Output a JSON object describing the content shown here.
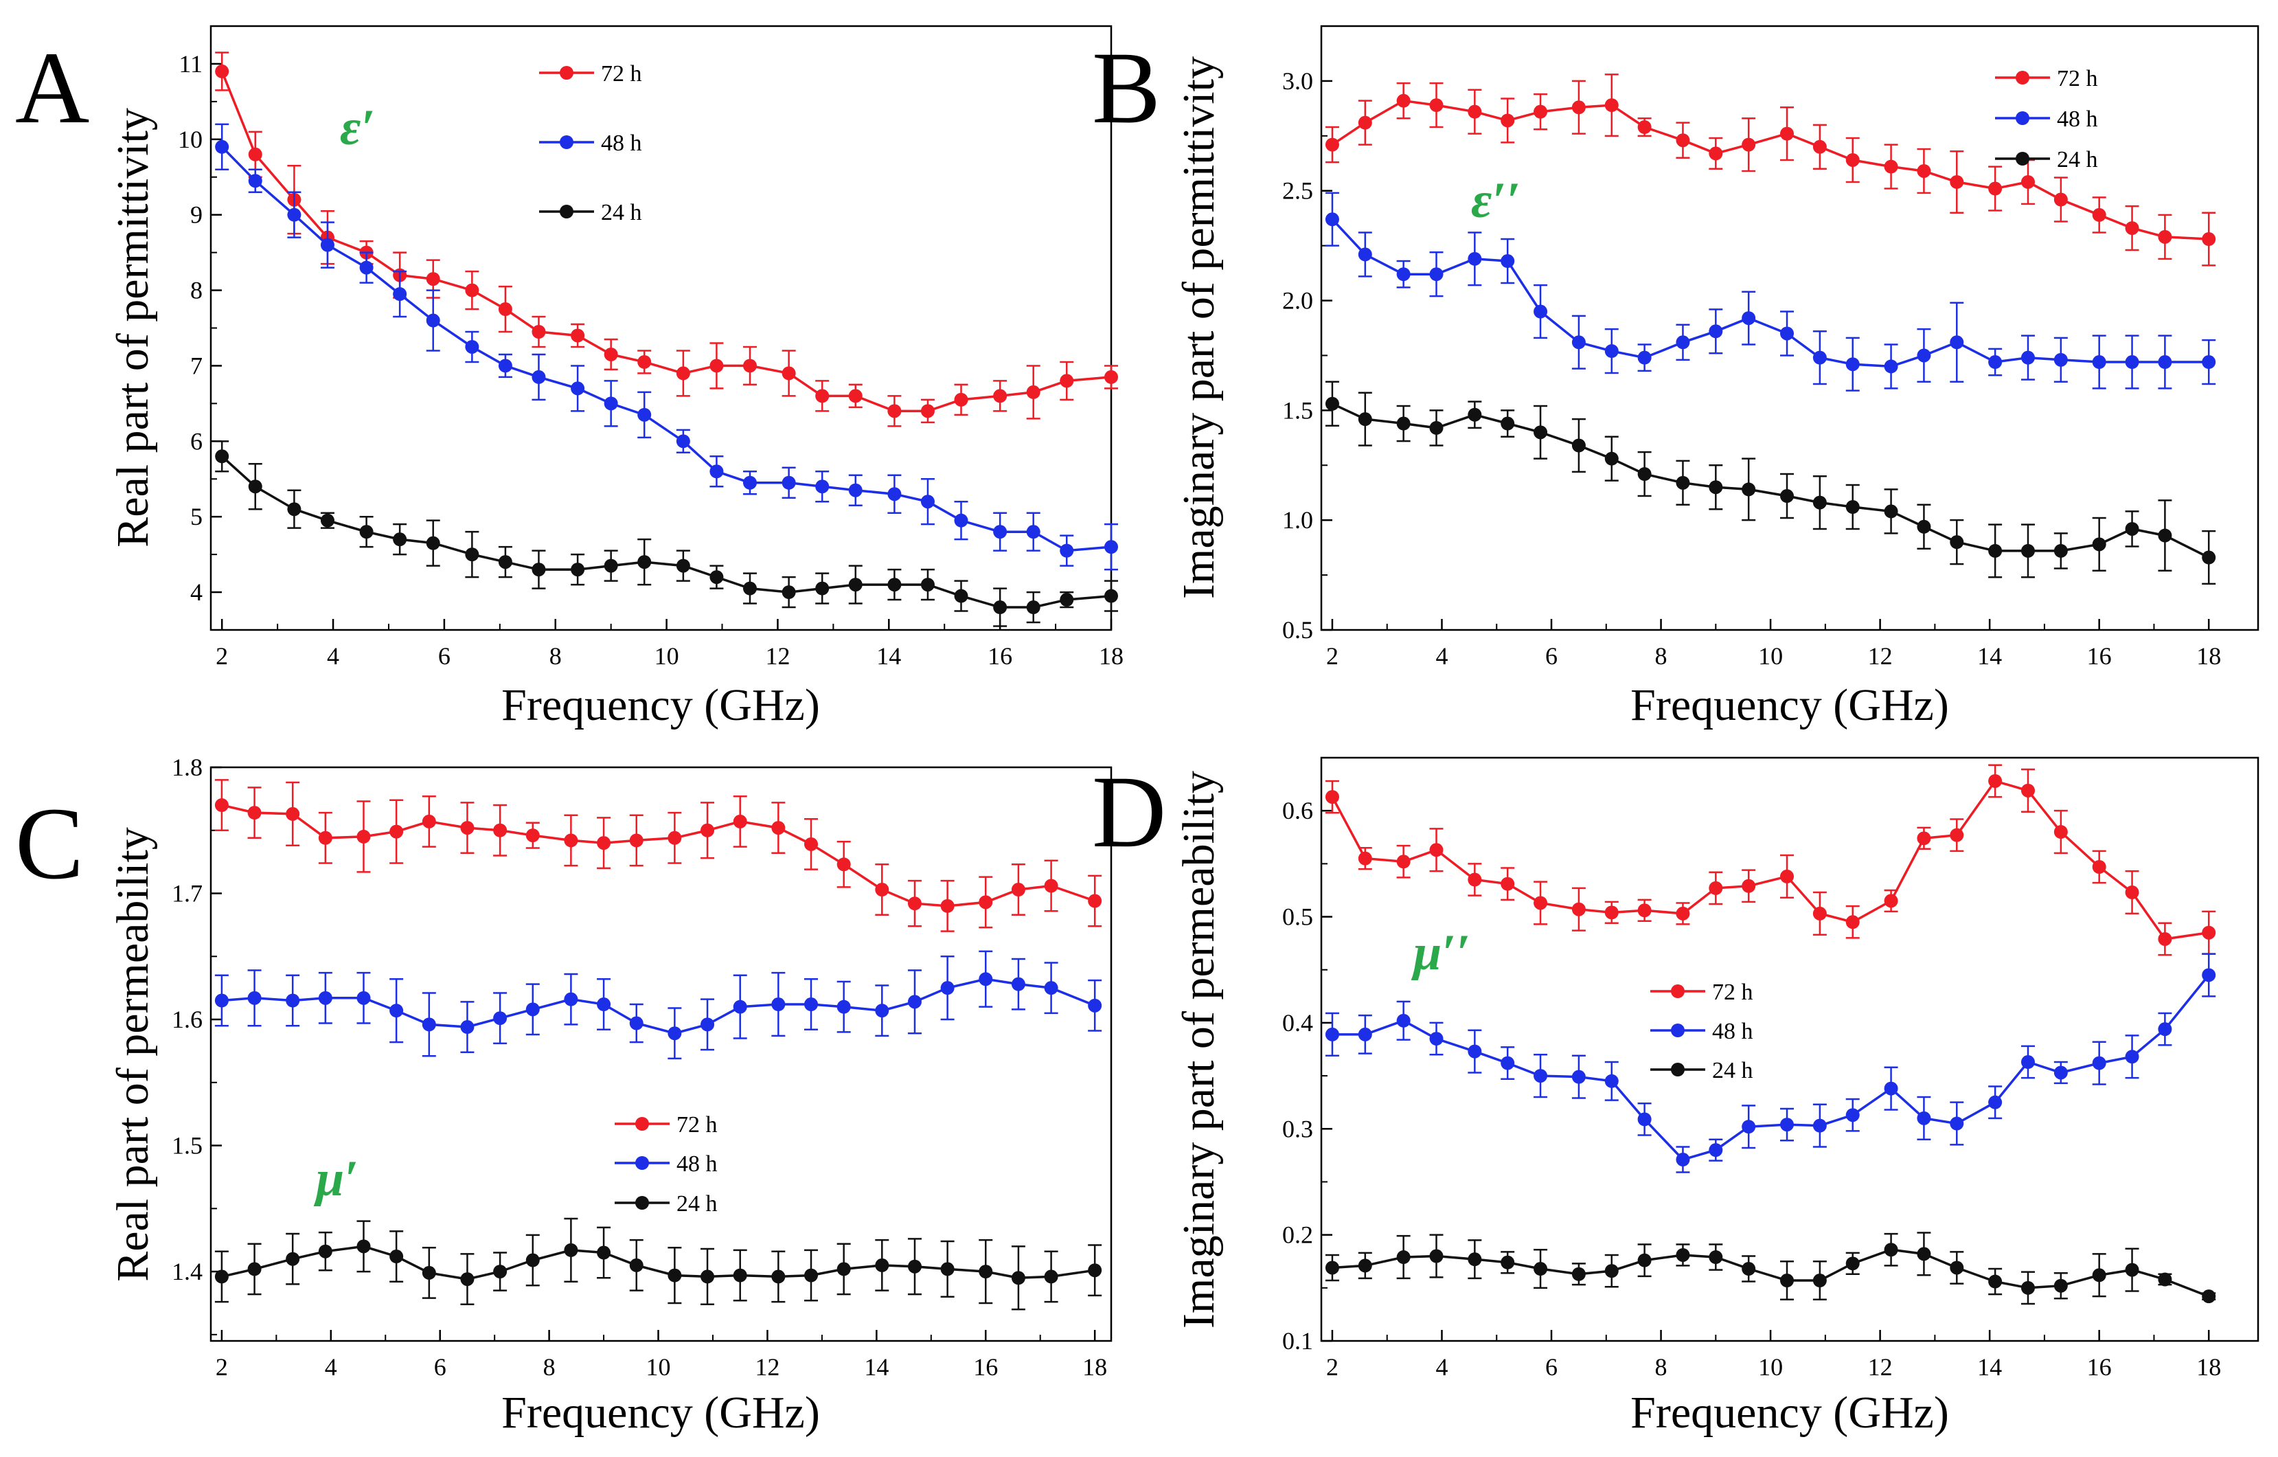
{
  "figure": {
    "panels": [
      "A",
      "B",
      "C",
      "D"
    ]
  },
  "chart_data": [
    {
      "panel": "A",
      "type": "line",
      "title": "",
      "xlabel": "Frequency (GHz)",
      "ylabel": "Real part of permittivity",
      "annotation": "ε′",
      "xlim": [
        1.8,
        18
      ],
      "ylim": [
        3.5,
        11.5
      ],
      "xticks": [
        2,
        4,
        6,
        8,
        10,
        12,
        14,
        16,
        18
      ],
      "yticks": [
        4,
        5,
        6,
        7,
        8,
        9,
        10,
        11
      ],
      "x": [
        2,
        2.6,
        3.3,
        3.9,
        4.6,
        5.2,
        5.8,
        6.5,
        7.1,
        7.7,
        8.4,
        9.0,
        9.6,
        10.3,
        10.9,
        11.5,
        12.2,
        12.8,
        13.4,
        14.1,
        14.7,
        15.3,
        16.0,
        16.6,
        17.2,
        18.0
      ],
      "legend": {
        "position": "top-center"
      },
      "series": [
        {
          "name": "72 h",
          "color": "#ee1c24",
          "values": [
            10.9,
            9.8,
            9.2,
            8.7,
            8.5,
            8.2,
            8.15,
            8.0,
            7.75,
            7.45,
            7.4,
            7.15,
            7.05,
            6.9,
            7.0,
            7.0,
            6.9,
            6.6,
            6.6,
            6.4,
            6.4,
            6.55,
            6.6,
            6.65,
            6.8,
            6.85
          ],
          "errors": [
            0.25,
            0.3,
            0.45,
            0.35,
            0.15,
            0.3,
            0.25,
            0.25,
            0.3,
            0.2,
            0.15,
            0.2,
            0.15,
            0.3,
            0.3,
            0.25,
            0.3,
            0.2,
            0.15,
            0.2,
            0.15,
            0.2,
            0.2,
            0.35,
            0.25,
            0.15
          ]
        },
        {
          "name": "48 h",
          "color": "#1c2fe6",
          "values": [
            9.9,
            9.45,
            9.0,
            8.6,
            8.3,
            7.95,
            7.6,
            7.25,
            7.0,
            6.85,
            6.7,
            6.5,
            6.35,
            6.0,
            5.6,
            5.45,
            5.45,
            5.4,
            5.35,
            5.3,
            5.2,
            4.95,
            4.8,
            4.8,
            4.55,
            4.6
          ],
          "errors": [
            0.3,
            0.15,
            0.3,
            0.3,
            0.2,
            0.3,
            0.4,
            0.2,
            0.15,
            0.3,
            0.3,
            0.3,
            0.3,
            0.15,
            0.2,
            0.15,
            0.2,
            0.2,
            0.2,
            0.25,
            0.3,
            0.25,
            0.25,
            0.25,
            0.2,
            0.3
          ]
        },
        {
          "name": "24 h",
          "color": "#111111",
          "values": [
            5.8,
            5.4,
            5.1,
            4.95,
            4.8,
            4.7,
            4.65,
            4.5,
            4.4,
            4.3,
            4.3,
            4.35,
            4.4,
            4.35,
            4.2,
            4.05,
            4.0,
            4.05,
            4.1,
            4.1,
            4.1,
            3.95,
            3.8,
            3.8,
            3.9,
            3.95
          ],
          "errors": [
            0.2,
            0.3,
            0.25,
            0.1,
            0.2,
            0.2,
            0.3,
            0.3,
            0.2,
            0.25,
            0.2,
            0.2,
            0.3,
            0.2,
            0.15,
            0.2,
            0.2,
            0.2,
            0.25,
            0.2,
            0.2,
            0.2,
            0.25,
            0.2,
            0.1,
            0.2
          ]
        }
      ]
    },
    {
      "panel": "B",
      "type": "line",
      "title": "",
      "xlabel": "Frequency (GHz)",
      "ylabel": "Imaginary part of permittivity",
      "annotation": "ε′′",
      "xlim": [
        1.8,
        18.9
      ],
      "ylim": [
        0.5,
        3.25
      ],
      "xticks": [
        2,
        4,
        6,
        8,
        10,
        12,
        14,
        16,
        18
      ],
      "yticks": [
        0.5,
        1.0,
        1.5,
        2.0,
        2.5,
        3.0
      ],
      "x": [
        2,
        2.6,
        3.3,
        3.9,
        4.6,
        5.2,
        5.8,
        6.5,
        7.1,
        7.7,
        8.4,
        9.0,
        9.6,
        10.3,
        10.9,
        11.5,
        12.2,
        12.8,
        13.4,
        14.1,
        14.7,
        15.3,
        16.0,
        16.6,
        17.2,
        18.0
      ],
      "legend": {
        "position": "top-right"
      },
      "series": [
        {
          "name": "72 h",
          "color": "#ee1c24",
          "values": [
            2.71,
            2.81,
            2.91,
            2.89,
            2.86,
            2.82,
            2.86,
            2.88,
            2.89,
            2.79,
            2.73,
            2.67,
            2.71,
            2.76,
            2.7,
            2.64,
            2.61,
            2.59,
            2.54,
            2.51,
            2.54,
            2.46,
            2.39,
            2.33,
            2.29,
            2.28
          ],
          "errors": [
            0.08,
            0.1,
            0.08,
            0.1,
            0.1,
            0.1,
            0.08,
            0.12,
            0.14,
            0.04,
            0.08,
            0.07,
            0.12,
            0.12,
            0.1,
            0.1,
            0.1,
            0.1,
            0.14,
            0.1,
            0.1,
            0.1,
            0.08,
            0.1,
            0.1,
            0.12
          ]
        },
        {
          "name": "48 h",
          "color": "#1c2fe6",
          "values": [
            2.37,
            2.21,
            2.12,
            2.12,
            2.19,
            2.18,
            1.95,
            1.81,
            1.77,
            1.74,
            1.81,
            1.86,
            1.92,
            1.85,
            1.74,
            1.71,
            1.7,
            1.75,
            1.81,
            1.72,
            1.74,
            1.73,
            1.72,
            1.72,
            1.72,
            1.72
          ],
          "errors": [
            0.12,
            0.1,
            0.06,
            0.1,
            0.12,
            0.1,
            0.12,
            0.12,
            0.1,
            0.06,
            0.08,
            0.1,
            0.12,
            0.1,
            0.12,
            0.12,
            0.1,
            0.12,
            0.18,
            0.06,
            0.1,
            0.1,
            0.12,
            0.12,
            0.12,
            0.1
          ]
        },
        {
          "name": "24 h",
          "color": "#111111",
          "values": [
            1.53,
            1.46,
            1.44,
            1.42,
            1.48,
            1.44,
            1.4,
            1.34,
            1.28,
            1.21,
            1.17,
            1.15,
            1.14,
            1.11,
            1.08,
            1.06,
            1.04,
            0.97,
            0.9,
            0.86,
            0.86,
            0.86,
            0.89,
            0.96,
            0.93,
            0.83
          ],
          "errors": [
            0.1,
            0.12,
            0.08,
            0.08,
            0.06,
            0.06,
            0.12,
            0.12,
            0.1,
            0.1,
            0.1,
            0.1,
            0.14,
            0.1,
            0.12,
            0.1,
            0.1,
            0.1,
            0.1,
            0.12,
            0.12,
            0.08,
            0.12,
            0.08,
            0.16,
            0.12
          ]
        }
      ]
    },
    {
      "panel": "C",
      "type": "line",
      "title": "",
      "xlabel": "Frequency (GHz)",
      "ylabel": "Real part of permeability",
      "annotation": "μ′",
      "xlim": [
        1.8,
        18.3
      ],
      "ylim": [
        1.345,
        1.8
      ],
      "xticks": [
        2,
        4,
        6,
        8,
        10,
        12,
        14,
        16,
        18
      ],
      "yticks": [
        1.4,
        1.5,
        1.6,
        1.7,
        1.8
      ],
      "x": [
        2,
        2.6,
        3.3,
        3.9,
        4.6,
        5.2,
        5.8,
        6.5,
        7.1,
        7.7,
        8.4,
        9.0,
        9.6,
        10.3,
        10.9,
        11.5,
        12.2,
        12.8,
        13.4,
        14.1,
        14.7,
        15.3,
        16.0,
        16.6,
        17.2,
        18.0
      ],
      "legend": {
        "position": "bottom-center"
      },
      "series": [
        {
          "name": "72 h",
          "color": "#ee1c24",
          "values": [
            1.77,
            1.764,
            1.763,
            1.744,
            1.745,
            1.749,
            1.757,
            1.752,
            1.75,
            1.746,
            1.742,
            1.74,
            1.742,
            1.744,
            1.75,
            1.757,
            1.752,
            1.739,
            1.723,
            1.703,
            1.692,
            1.69,
            1.693,
            1.703,
            1.706,
            1.694
          ],
          "errors": [
            0.02,
            0.02,
            0.025,
            0.02,
            0.028,
            0.025,
            0.02,
            0.02,
            0.02,
            0.01,
            0.02,
            0.02,
            0.02,
            0.02,
            0.022,
            0.02,
            0.02,
            0.02,
            0.018,
            0.02,
            0.018,
            0.02,
            0.02,
            0.02,
            0.02,
            0.02
          ]
        },
        {
          "name": "48 h",
          "color": "#1c2fe6",
          "values": [
            1.615,
            1.617,
            1.615,
            1.617,
            1.617,
            1.607,
            1.596,
            1.594,
            1.601,
            1.608,
            1.616,
            1.612,
            1.597,
            1.589,
            1.596,
            1.61,
            1.612,
            1.612,
            1.61,
            1.607,
            1.614,
            1.625,
            1.632,
            1.628,
            1.625,
            1.611
          ],
          "errors": [
            0.02,
            0.022,
            0.02,
            0.02,
            0.02,
            0.025,
            0.025,
            0.02,
            0.02,
            0.02,
            0.02,
            0.02,
            0.015,
            0.02,
            0.02,
            0.025,
            0.025,
            0.02,
            0.02,
            0.02,
            0.025,
            0.025,
            0.022,
            0.02,
            0.02,
            0.02
          ]
        },
        {
          "name": "24 h",
          "color": "#111111",
          "values": [
            1.396,
            1.402,
            1.41,
            1.416,
            1.42,
            1.412,
            1.399,
            1.394,
            1.4,
            1.409,
            1.417,
            1.415,
            1.405,
            1.397,
            1.396,
            1.397,
            1.396,
            1.397,
            1.402,
            1.405,
            1.404,
            1.402,
            1.4,
            1.395,
            1.396,
            1.401
          ],
          "errors": [
            0.02,
            0.02,
            0.02,
            0.015,
            0.02,
            0.02,
            0.02,
            0.02,
            0.015,
            0.02,
            0.025,
            0.02,
            0.02,
            0.022,
            0.022,
            0.02,
            0.02,
            0.02,
            0.02,
            0.02,
            0.022,
            0.022,
            0.025,
            0.025,
            0.02,
            0.02
          ]
        }
      ]
    },
    {
      "panel": "D",
      "type": "line",
      "title": "",
      "xlabel": "Frequency (GHz)",
      "ylabel": "Imaginary part of permeability",
      "annotation": "μ′′",
      "xlim": [
        1.8,
        18.9
      ],
      "ylim": [
        0.1,
        0.65
      ],
      "xticks": [
        2,
        4,
        6,
        8,
        10,
        12,
        14,
        16,
        18
      ],
      "yticks": [
        0.1,
        0.2,
        0.3,
        0.4,
        0.5,
        0.6
      ],
      "x": [
        2,
        2.6,
        3.3,
        3.9,
        4.6,
        5.2,
        5.8,
        6.5,
        7.1,
        7.7,
        8.4,
        9.0,
        9.6,
        10.3,
        10.9,
        11.5,
        12.2,
        12.8,
        13.4,
        14.1,
        14.7,
        15.3,
        16.0,
        16.6,
        17.2,
        18.0
      ],
      "legend": {
        "position": "center"
      },
      "series": [
        {
          "name": "72 h",
          "color": "#ee1c24",
          "values": [
            0.613,
            0.555,
            0.552,
            0.563,
            0.535,
            0.531,
            0.513,
            0.507,
            0.504,
            0.506,
            0.503,
            0.527,
            0.529,
            0.538,
            0.503,
            0.495,
            0.515,
            0.574,
            0.577,
            0.628,
            0.619,
            0.58,
            0.547,
            0.523,
            0.479,
            0.485
          ],
          "errors": [
            0.015,
            0.01,
            0.015,
            0.02,
            0.015,
            0.015,
            0.02,
            0.02,
            0.01,
            0.01,
            0.01,
            0.015,
            0.015,
            0.02,
            0.02,
            0.015,
            0.01,
            0.01,
            0.015,
            0.015,
            0.02,
            0.02,
            0.015,
            0.02,
            0.015,
            0.02
          ]
        },
        {
          "name": "48 h",
          "color": "#1c2fe6",
          "values": [
            0.389,
            0.389,
            0.402,
            0.385,
            0.373,
            0.362,
            0.35,
            0.349,
            0.345,
            0.309,
            0.271,
            0.28,
            0.302,
            0.304,
            0.303,
            0.313,
            0.338,
            0.31,
            0.305,
            0.325,
            0.363,
            0.353,
            0.362,
            0.368,
            0.394,
            0.445
          ],
          "errors": [
            0.02,
            0.018,
            0.018,
            0.015,
            0.02,
            0.015,
            0.02,
            0.02,
            0.018,
            0.015,
            0.012,
            0.01,
            0.02,
            0.015,
            0.02,
            0.015,
            0.02,
            0.02,
            0.02,
            0.015,
            0.015,
            0.01,
            0.02,
            0.02,
            0.015,
            0.02
          ]
        },
        {
          "name": "24 h",
          "color": "#111111",
          "values": [
            0.169,
            0.171,
            0.179,
            0.18,
            0.177,
            0.174,
            0.168,
            0.163,
            0.166,
            0.176,
            0.181,
            0.179,
            0.168,
            0.157,
            0.157,
            0.173,
            0.186,
            0.182,
            0.169,
            0.156,
            0.15,
            0.152,
            0.162,
            0.167,
            0.158,
            0.142
          ],
          "errors": [
            0.012,
            0.012,
            0.02,
            0.02,
            0.018,
            0.01,
            0.018,
            0.01,
            0.015,
            0.015,
            0.01,
            0.012,
            0.012,
            0.018,
            0.018,
            0.01,
            0.015,
            0.02,
            0.015,
            0.012,
            0.015,
            0.012,
            0.02,
            0.02,
            0.005,
            0.003
          ]
        }
      ]
    }
  ]
}
